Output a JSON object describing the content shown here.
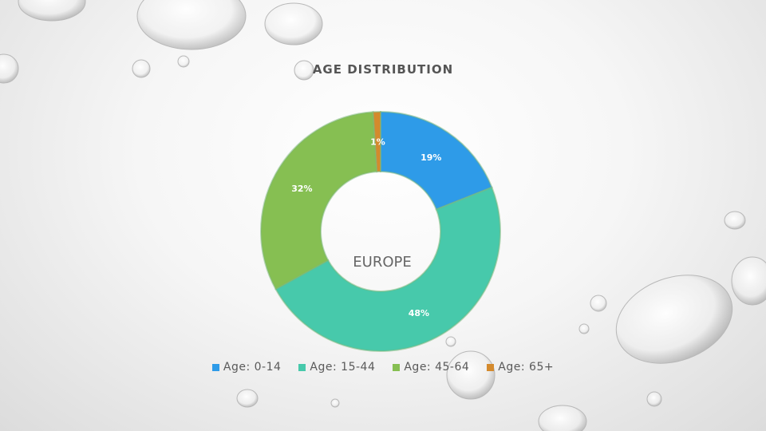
{
  "chart_data": {
    "type": "pie",
    "title": "AGE DISTRIBUTION",
    "center_label": "EUROPE",
    "legend_position": "bottom",
    "series": [
      {
        "name": "Age: 0-14",
        "value": 19,
        "label": "19%",
        "color": "#2e9be8"
      },
      {
        "name": "Age: 15-44",
        "value": 48,
        "label": "48%",
        "color": "#47c9ab"
      },
      {
        "name": "Age: 45-64",
        "value": 32,
        "label": "32%",
        "color": "#86bf52"
      },
      {
        "name": "Age: 65+",
        "value": 1,
        "label": "1%",
        "color": "#d48a2d"
      }
    ]
  }
}
